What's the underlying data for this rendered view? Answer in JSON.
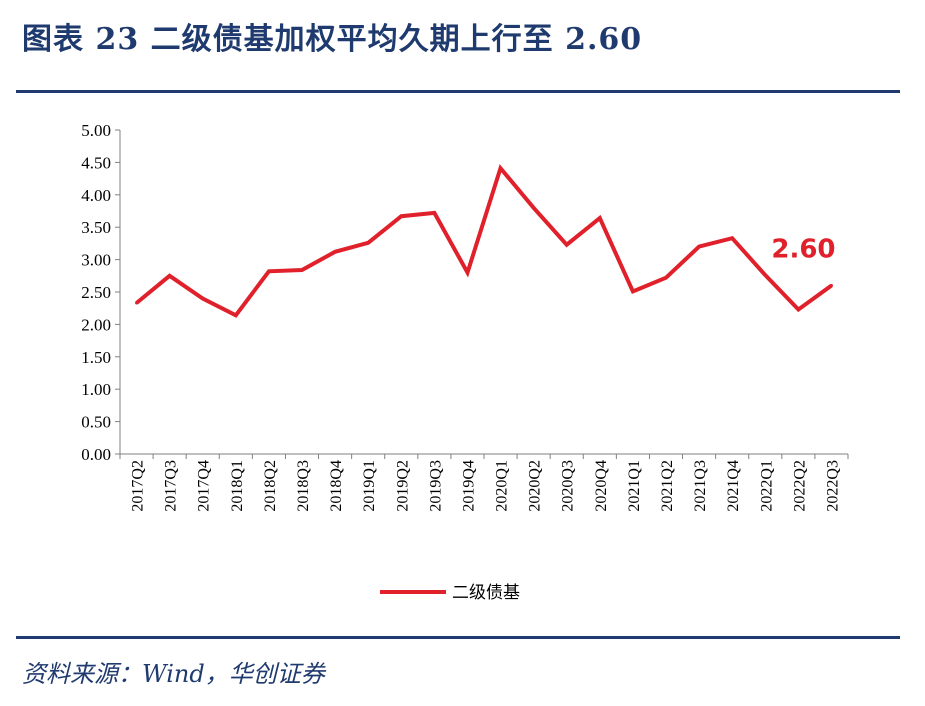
{
  "page": {
    "title": "图表 23 二级债基加权平均久期上行至 2.60",
    "source": "资料来源：Wind，华创证券"
  },
  "colors": {
    "brand": "#1f3a6e",
    "series": "#e0202a",
    "axis": "#808080"
  },
  "chart_data": {
    "type": "line",
    "title": "",
    "xlabel": "",
    "ylabel": "",
    "ylim": [
      0,
      5
    ],
    "yticks": [
      "0.00",
      "0.50",
      "1.00",
      "1.50",
      "2.00",
      "2.50",
      "3.00",
      "3.50",
      "4.00",
      "4.50",
      "5.00"
    ],
    "categories": [
      "2017Q2",
      "2017Q3",
      "2017Q4",
      "2018Q1",
      "2018Q2",
      "2018Q3",
      "2018Q4",
      "2019Q1",
      "2019Q2",
      "2019Q3",
      "2019Q4",
      "2020Q1",
      "2020Q2",
      "2020Q3",
      "2020Q4",
      "2021Q1",
      "2021Q2",
      "2021Q3",
      "2021Q4",
      "2022Q1",
      "2022Q2",
      "2022Q3"
    ],
    "series": [
      {
        "name": "二级债基",
        "values": [
          2.33,
          2.75,
          2.4,
          2.14,
          2.82,
          2.84,
          3.12,
          3.26,
          3.67,
          3.72,
          2.8,
          4.41,
          3.8,
          3.23,
          3.64,
          2.51,
          2.72,
          3.2,
          3.33,
          2.76,
          2.23,
          2.6
        ]
      }
    ],
    "legend": "bottom",
    "annotation": {
      "text": "2.60",
      "category": "2022Q3"
    }
  }
}
